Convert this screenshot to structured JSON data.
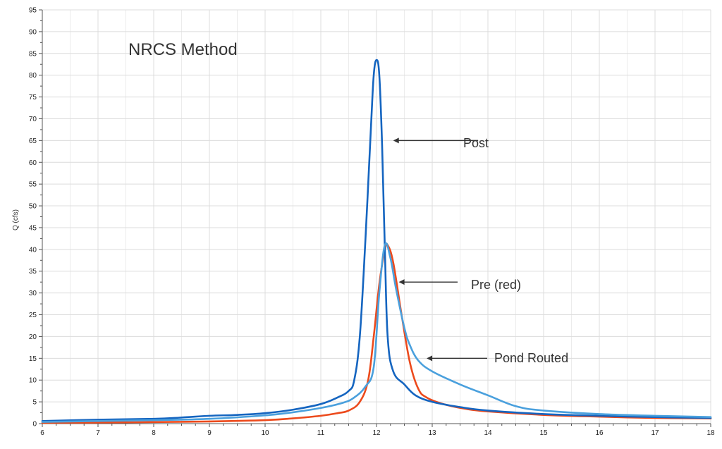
{
  "chart_data": {
    "type": "line",
    "title": "NRCS Method",
    "xlabel": "",
    "ylabel": "Q (cfs)",
    "xlim": [
      6,
      18
    ],
    "ylim": [
      0,
      95
    ],
    "x_ticks": [
      6,
      7,
      8,
      9,
      10,
      11,
      12,
      13,
      14,
      15,
      16,
      17,
      18
    ],
    "y_ticks": [
      0,
      5,
      10,
      15,
      20,
      25,
      30,
      35,
      40,
      45,
      50,
      55,
      60,
      65,
      70,
      75,
      80,
      85,
      90,
      95
    ],
    "grid": true,
    "series": [
      {
        "color": "#ec4a1c",
        "x": [
          6,
          7,
          8,
          9,
          10,
          10.5,
          11,
          11.3,
          11.5,
          11.7,
          11.85,
          11.95,
          12.05,
          12.15,
          12.2,
          12.3,
          12.45,
          12.6,
          12.75,
          12.9,
          13.2,
          13.6,
          14,
          15,
          16,
          17,
          18
        ],
        "y": [
          0.2,
          0.25,
          0.35,
          0.5,
          0.8,
          1.2,
          1.8,
          2.4,
          3.0,
          5.0,
          10.0,
          20.0,
          32.0,
          40.0,
          41.0,
          37.0,
          25.0,
          14.0,
          8.0,
          6.0,
          4.5,
          3.4,
          2.8,
          2.0,
          1.6,
          1.3,
          1.2
        ]
      },
      {
        "color": "#1565c0",
        "x": [
          6,
          7,
          8,
          8.5,
          9,
          9.5,
          10,
          10.5,
          11,
          11.3,
          11.5,
          11.6,
          11.7,
          11.8,
          11.9,
          11.95,
          12,
          12.05,
          12.1,
          12.15,
          12.2,
          12.3,
          12.5,
          12.7,
          13,
          13.5,
          14,
          15,
          16,
          17,
          18
        ],
        "y": [
          0.6,
          0.9,
          1.1,
          1.4,
          1.8,
          2.0,
          2.4,
          3.2,
          4.5,
          6.0,
          7.5,
          10.0,
          20.0,
          42.0,
          68.0,
          80.0,
          83.5,
          80.0,
          64.0,
          40.0,
          20.0,
          12.0,
          9.0,
          6.5,
          5.0,
          3.8,
          3.0,
          2.2,
          1.8,
          1.5,
          1.3
        ]
      },
      {
        "color": "#4aa0dd",
        "x": [
          6,
          7,
          8,
          9,
          10,
          10.5,
          11,
          11.4,
          11.6,
          11.8,
          11.95,
          12.05,
          12.15,
          12.25,
          12.35,
          12.5,
          12.6,
          12.75,
          13,
          13.5,
          14,
          14.5,
          15,
          16,
          17,
          18
        ],
        "y": [
          0.4,
          0.6,
          0.8,
          1.1,
          1.9,
          2.6,
          3.6,
          4.8,
          6.0,
          8.5,
          13.0,
          30.0,
          41.0,
          38.0,
          31.0,
          22.0,
          18.0,
          14.5,
          12.0,
          9.0,
          6.5,
          4.0,
          3.0,
          2.2,
          1.8,
          1.5
        ]
      }
    ],
    "annotations": [
      {
        "text": "Post",
        "arrow_to": [
          12.3,
          65
        ]
      },
      {
        "text": "Pre (red)",
        "arrow_to": [
          12.4,
          32.5
        ]
      },
      {
        "text": "Pond Routed",
        "arrow_to": [
          12.9,
          15
        ]
      }
    ]
  }
}
